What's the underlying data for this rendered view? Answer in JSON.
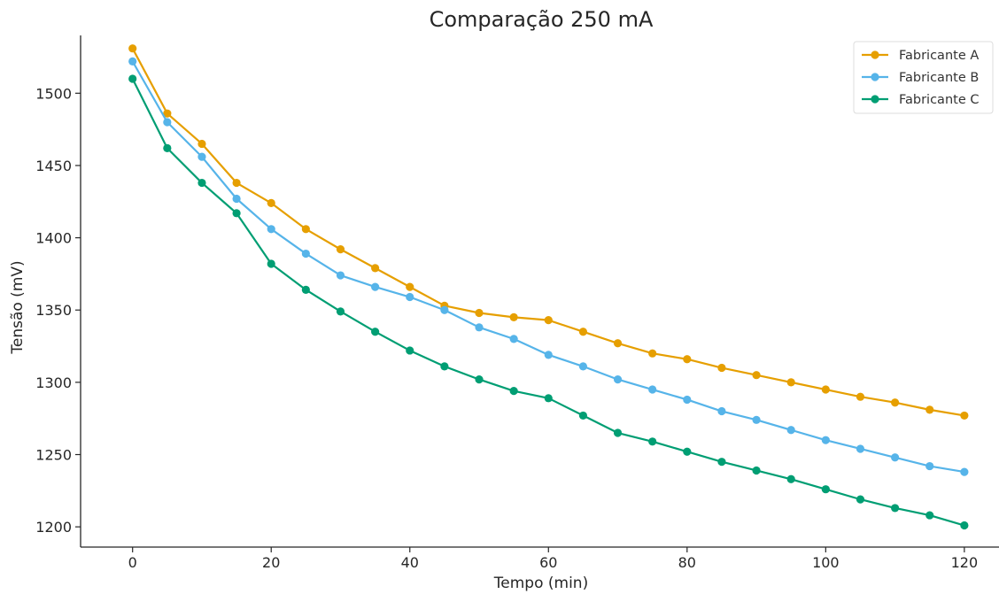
{
  "chart_data": {
    "type": "line",
    "title": "Comparação 250 mA",
    "xlabel": "Tempo (min)",
    "ylabel": "Tensão (mV)",
    "xlim": [
      -7.5,
      125
    ],
    "ylim": [
      1186,
      1540
    ],
    "xticks": [
      0,
      20,
      40,
      60,
      80,
      100,
      120
    ],
    "yticks": [
      1200,
      1250,
      1300,
      1350,
      1400,
      1450,
      1500
    ],
    "grid": false,
    "legend_position": "top-right",
    "x": [
      0,
      5,
      10,
      15,
      20,
      25,
      30,
      35,
      40,
      45,
      50,
      55,
      60,
      65,
      70,
      75,
      80,
      85,
      90,
      95,
      100,
      105,
      110,
      115,
      120
    ],
    "series": [
      {
        "name": "Fabricante A",
        "color": "#E69F00",
        "values": [
          1531,
          1486,
          1465,
          1438,
          1424,
          1406,
          1392,
          1379,
          1366,
          1353,
          1348,
          1345,
          1343,
          1335,
          1327,
          1320,
          1316,
          1310,
          1305,
          1300,
          1295,
          1290,
          1286,
          1281,
          1277
        ]
      },
      {
        "name": "Fabricante B",
        "color": "#56B4E9",
        "values": [
          1522,
          1480,
          1456,
          1427,
          1406,
          1389,
          1374,
          1366,
          1359,
          1350,
          1338,
          1330,
          1319,
          1311,
          1302,
          1295,
          1288,
          1280,
          1274,
          1267,
          1260,
          1254,
          1248,
          1242,
          1238
        ]
      },
      {
        "name": "Fabricante C",
        "color": "#009E73",
        "values": [
          1510,
          1462,
          1438,
          1417,
          1382,
          1364,
          1349,
          1335,
          1322,
          1311,
          1302,
          1294,
          1289,
          1277,
          1265,
          1259,
          1252,
          1245,
          1239,
          1233,
          1226,
          1219,
          1213,
          1208,
          1201
        ]
      }
    ]
  }
}
